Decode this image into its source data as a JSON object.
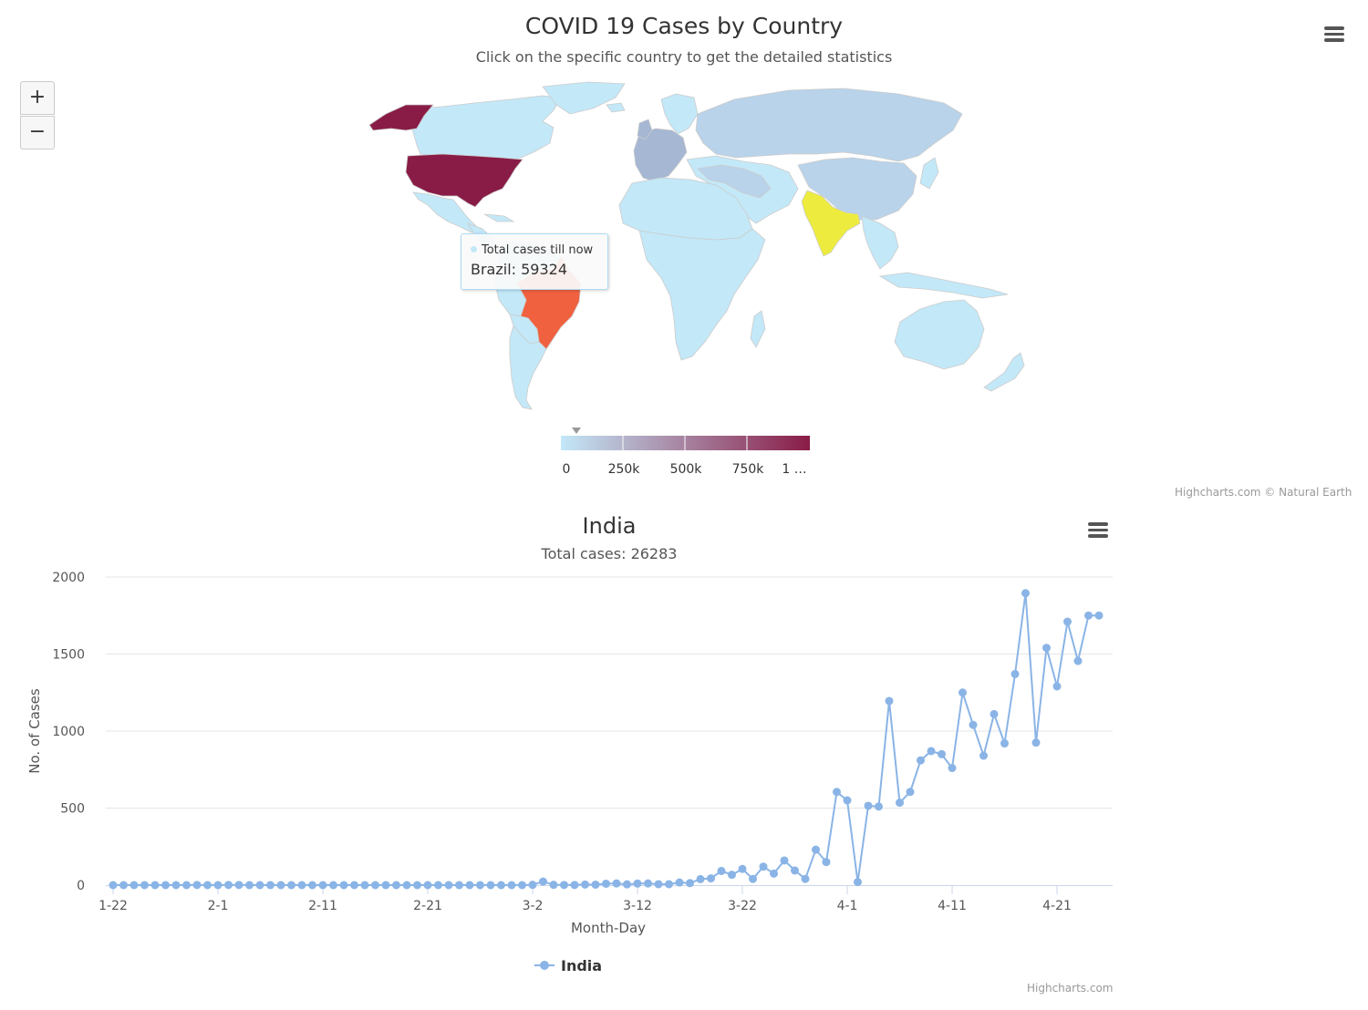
{
  "map": {
    "title": "COVID 19 Cases by Country",
    "subtitle": "Click on the specific country to get the detailed statistics",
    "menu_icon": "hamburger-menu-icon",
    "zoom_in_label": "+",
    "zoom_out_label": "−",
    "tooltip": {
      "series_name": "Total cases till now",
      "point_label": "Brazil: 59324",
      "dot_color": "#c3e8f8"
    },
    "color_axis": {
      "min_color": "#c3e8f8",
      "max_color": "#891c47",
      "tick_labels": [
        "0",
        "250k",
        "500k",
        "750k",
        "1 …"
      ]
    },
    "highlight_colors": {
      "default_land": "#c3e8f8",
      "europe": "#a6b7d4",
      "united_states": "#891c47",
      "brazil": "#f06140",
      "india": "#edec3e"
    },
    "credit": "Highcharts.com © Natural Earth"
  },
  "chart": {
    "title": "India",
    "subtitle": "Total cases: 26283",
    "menu_icon": "hamburger-menu-icon",
    "credit": "Highcharts.com",
    "line_color": "#8ab4e6"
  },
  "chart_data": {
    "type": "line",
    "title": "India",
    "subtitle": "Total cases: 26283",
    "xlabel": "Month-Day",
    "ylabel": "No. of Cases",
    "x_tick_labels": [
      "1-22",
      "2-1",
      "2-11",
      "2-21",
      "3-2",
      "3-12",
      "3-22",
      "4-1",
      "4-11",
      "4-21"
    ],
    "y_tick_labels": [
      "0",
      "500",
      "1000",
      "1500",
      "2000"
    ],
    "ylim": [
      0,
      2000
    ],
    "grid": true,
    "legend": "bottom-center",
    "categories": [
      "1-22",
      "1-23",
      "1-24",
      "1-25",
      "1-26",
      "1-27",
      "1-28",
      "1-29",
      "1-30",
      "1-31",
      "2-1",
      "2-2",
      "2-3",
      "2-4",
      "2-5",
      "2-6",
      "2-7",
      "2-8",
      "2-9",
      "2-10",
      "2-11",
      "2-12",
      "2-13",
      "2-14",
      "2-15",
      "2-16",
      "2-17",
      "2-18",
      "2-19",
      "2-20",
      "2-21",
      "2-22",
      "2-23",
      "2-24",
      "2-25",
      "2-26",
      "2-27",
      "2-28",
      "2-29",
      "3-1",
      "3-2",
      "3-3",
      "3-4",
      "3-5",
      "3-6",
      "3-7",
      "3-8",
      "3-9",
      "3-10",
      "3-11",
      "3-12",
      "3-13",
      "3-14",
      "3-15",
      "3-16",
      "3-17",
      "3-18",
      "3-19",
      "3-20",
      "3-21",
      "3-22",
      "3-23",
      "3-24",
      "3-25",
      "3-26",
      "3-27",
      "3-28",
      "3-29",
      "3-30",
      "3-31",
      "4-1",
      "4-2",
      "4-3",
      "4-4",
      "4-5",
      "4-6",
      "4-7",
      "4-8",
      "4-9",
      "4-10",
      "4-11",
      "4-12",
      "4-13",
      "4-14",
      "4-15",
      "4-16",
      "4-17",
      "4-18",
      "4-19",
      "4-20",
      "4-21",
      "4-22",
      "4-23",
      "4-24",
      "4-25"
    ],
    "series": [
      {
        "name": "India",
        "values": [
          0,
          0,
          0,
          0,
          0,
          0,
          0,
          0,
          1,
          0,
          0,
          1,
          1,
          0,
          0,
          0,
          0,
          0,
          0,
          0,
          0,
          0,
          0,
          0,
          0,
          0,
          0,
          0,
          0,
          0,
          0,
          0,
          0,
          0,
          0,
          0,
          0,
          0,
          0,
          0,
          2,
          23,
          2,
          1,
          1,
          4,
          3,
          9,
          11,
          5,
          10,
          11,
          6,
          6,
          17,
          13,
          39,
          44,
          92,
          67,
          105,
          40,
          120,
          75,
          160,
          95,
          40,
          230,
          150,
          605,
          550,
          20,
          515,
          510,
          1195,
          535,
          605,
          810,
          870,
          850,
          760,
          1250,
          1040,
          840,
          1110,
          920,
          1370,
          1895,
          925,
          1540,
          1290,
          1710,
          1455,
          1750,
          1750
        ]
      }
    ]
  }
}
